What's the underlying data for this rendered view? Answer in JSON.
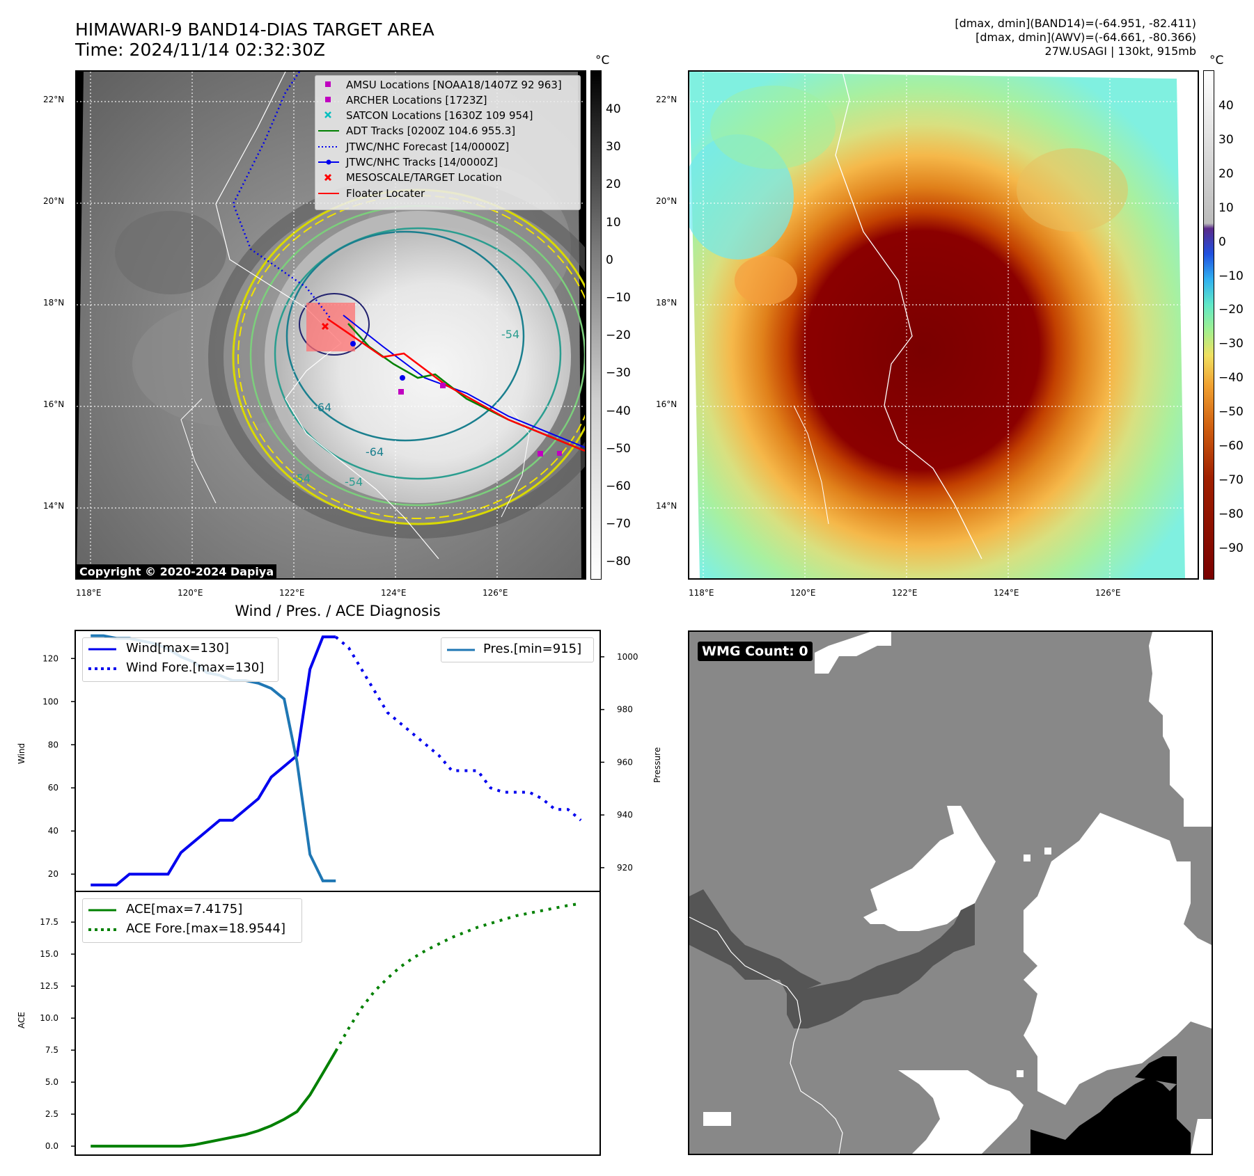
{
  "header": {
    "title_line1": "HIMAWARI-9 BAND14-DIAS TARGET AREA",
    "title_line2": "Time: 2024/11/14 02:32:30Z",
    "info_line1": "[dmax, dmin](BAND14)=(-64.951, -82.411)",
    "info_line2": "[dmax, dmin](AWV)=(-64.661, -80.366)",
    "info_line3": "27W.USAGI | 130kt, 915mb"
  },
  "map": {
    "lat_labels": [
      "22°N",
      "20°N",
      "18°N",
      "16°N",
      "14°N"
    ],
    "lon_labels": [
      "118°E",
      "120°E",
      "122°E",
      "124°E",
      "126°E"
    ],
    "contour_labels": [
      "-64",
      "-64",
      "-54",
      "-54",
      "-54"
    ],
    "copyright": "Copyright © 2020-2024 Dapiya",
    "legend": [
      {
        "label": "AMSU Locations [NOAA18/1407Z 92 963]",
        "color": "#c000c0"
      },
      {
        "label": "ARCHER Locations [1723Z]",
        "color": "#c000c0"
      },
      {
        "label": "SATCON Locations [1630Z 109 954]",
        "color": "#00bfbf"
      },
      {
        "label": "ADT Tracks [0200Z 104.6 955.3]",
        "color": "#008000"
      },
      {
        "label": "JTWC/NHC Forecast [14/0000Z]",
        "color": "#0000ff"
      },
      {
        "label": "JTWC/NHC Tracks [14/0000Z]",
        "color": "#0000ff"
      },
      {
        "label": "MESOSCALE/TARGET Location",
        "color": "#ff0000"
      },
      {
        "label": "Floater Locater",
        "color": "#ff0000"
      }
    ]
  },
  "colorbar_gray": {
    "unit": "°C",
    "ticks": [
      "40",
      "30",
      "20",
      "10",
      "0",
      "−10",
      "−20",
      "−30",
      "−40",
      "−50",
      "−60",
      "−70",
      "−80"
    ]
  },
  "colorbar_awv": {
    "unit": "°C",
    "ticks": [
      "40",
      "30",
      "20",
      "10",
      "0",
      "−10",
      "−20",
      "−30",
      "−40",
      "−50",
      "−60",
      "−70",
      "−80",
      "−90"
    ]
  },
  "wmg": {
    "label": "WMG Count: 0"
  },
  "chart_data": [
    {
      "type": "line",
      "title": "Wind / Pres. / ACE Diagnosis",
      "ylabel": "Wind",
      "ylabel_right": "Pressure",
      "ylim": [
        12,
        133
      ],
      "ylim_right": [
        911,
        1010
      ],
      "yticks": [
        20,
        40,
        60,
        80,
        100,
        120
      ],
      "yticks_right": [
        920,
        940,
        960,
        980,
        1000
      ],
      "series": [
        {
          "name": "Wind[max=130]",
          "style": "solid",
          "color": "#0000ee",
          "x": [
            0,
            1,
            2,
            3,
            4,
            5,
            6,
            7,
            8,
            9,
            10,
            11,
            12,
            13,
            14,
            15,
            16,
            17,
            18,
            19
          ],
          "values": [
            15,
            15,
            15,
            20,
            20,
            20,
            20,
            30,
            35,
            40,
            45,
            45,
            50,
            55,
            65,
            70,
            75,
            115,
            130,
            130
          ]
        },
        {
          "name": "Wind Fore.[max=130]",
          "style": "dotted",
          "color": "#0000ee",
          "x": [
            19,
            20,
            21,
            22,
            23,
            24,
            25,
            26,
            27,
            28,
            29,
            30,
            31,
            32,
            33,
            34,
            35,
            36,
            37,
            38
          ],
          "values": [
            130,
            125,
            115,
            105,
            95,
            90,
            85,
            80,
            75,
            68,
            68,
            68,
            60,
            58,
            58,
            58,
            55,
            50,
            50,
            45
          ]
        },
        {
          "name": "Pres.[min=915]",
          "style": "solid",
          "color": "#1f77b4",
          "x": [
            0,
            1,
            2,
            3,
            4,
            5,
            6,
            7,
            8,
            9,
            10,
            11,
            12,
            13,
            14,
            15,
            16,
            17,
            18,
            19
          ],
          "values": [
            1008,
            1008,
            1007,
            1007,
            1006,
            1005,
            1003,
            1000,
            998,
            994,
            993,
            991,
            991,
            990,
            988,
            984,
            960,
            925,
            915,
            915
          ]
        }
      ]
    },
    {
      "type": "line",
      "ylabel": "ACE",
      "ylim": [
        -0.7,
        19.9
      ],
      "yticks": [
        "0.0",
        "2.5",
        "5.0",
        "7.5",
        "10.0",
        "12.5",
        "15.0",
        "17.5"
      ],
      "series": [
        {
          "name": "ACE[max=7.4175]",
          "style": "solid",
          "color": "#008000",
          "x": [
            0,
            1,
            2,
            3,
            4,
            5,
            6,
            7,
            8,
            9,
            10,
            11,
            12,
            13,
            14,
            15,
            16,
            17,
            18,
            19
          ],
          "values": [
            0,
            0,
            0,
            0,
            0,
            0,
            0,
            0,
            0.1,
            0.3,
            0.5,
            0.7,
            0.9,
            1.2,
            1.6,
            2.1,
            2.7,
            4.0,
            5.7,
            7.4175
          ]
        },
        {
          "name": "ACE Fore.[max=18.9544]",
          "style": "dotted",
          "color": "#008000",
          "x": [
            19,
            20,
            21,
            22,
            23,
            24,
            25,
            26,
            27,
            28,
            29,
            30,
            31,
            32,
            33,
            34,
            35,
            36,
            37,
            38
          ],
          "values": [
            7.4175,
            9.2,
            10.8,
            12.1,
            13.1,
            14.0,
            14.7,
            15.3,
            15.8,
            16.3,
            16.7,
            17.1,
            17.4,
            17.7,
            18.0,
            18.2,
            18.4,
            18.6,
            18.8,
            18.9544
          ]
        }
      ]
    }
  ]
}
